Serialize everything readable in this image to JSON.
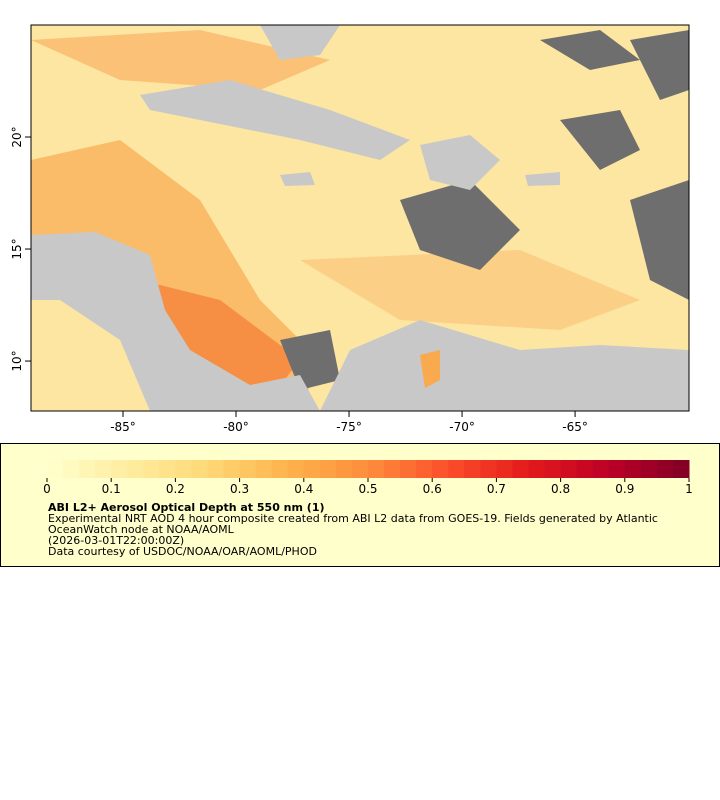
{
  "map": {
    "lon_range": [
      -89.07,
      -59.96
    ],
    "lat_range": [
      7.77,
      25.0
    ],
    "xticks": [
      {
        "value": -85,
        "label": "-85°"
      },
      {
        "value": -80,
        "label": "-80°"
      },
      {
        "value": -75,
        "label": "-75°"
      },
      {
        "value": -70,
        "label": "-70°"
      },
      {
        "value": -65,
        "label": "-65°"
      }
    ],
    "yticks": [
      {
        "value": 10,
        "label": "10°"
      },
      {
        "value": 15,
        "label": "15°"
      },
      {
        "value": 20,
        "label": "20°"
      }
    ]
  },
  "colorbar": {
    "range": [
      0,
      1
    ],
    "ticks": [
      0,
      0.1,
      0.2,
      0.3,
      0.4,
      0.5,
      0.6,
      0.7,
      0.8,
      0.9,
      1
    ],
    "colors": [
      "#ffffcc",
      "#ffeda0",
      "#fed976",
      "#feb24c",
      "#fd8d3c",
      "#fc4e2a",
      "#e31a1c",
      "#bd0026",
      "#800026"
    ],
    "steps": 40
  },
  "legend": {
    "title": "ABI L2+ Aerosol Optical Depth at 550 nm (1)",
    "lines": [
      "Experimental NRT AOD 4 hour composite created from ABI L2 data from GOES-19. Fields generated by Atlantic",
      "OceanWatch node at NOAA/AOML",
      "(2026-03-01T22:00:00Z)",
      "Data courtesy of USDOC/NOAA/OAR/AOML/PHOD"
    ]
  }
}
